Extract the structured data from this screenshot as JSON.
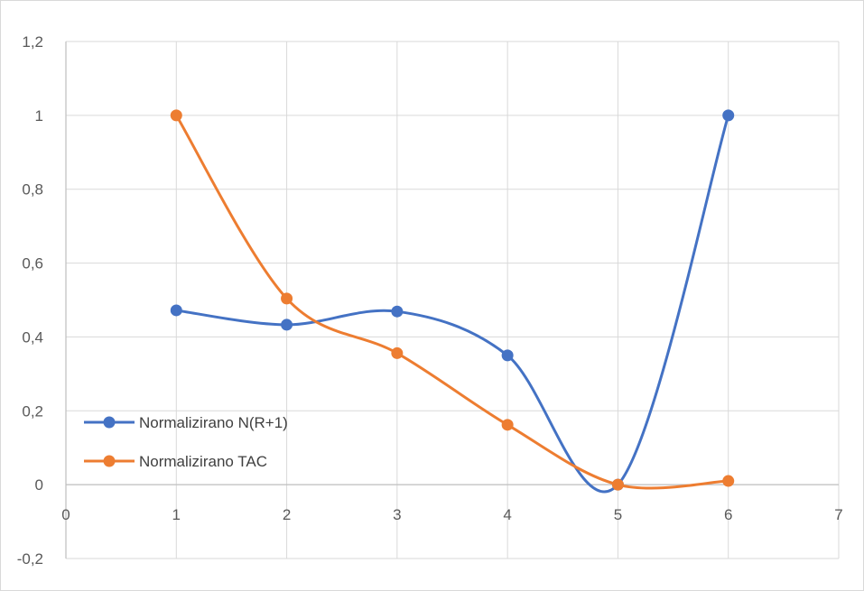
{
  "chart_data": {
    "type": "line",
    "smooth": true,
    "title": "",
    "xlabel": "",
    "ylabel": "",
    "xlim": [
      0,
      7
    ],
    "ylim": [
      -0.2,
      1.2
    ],
    "x_ticks": [
      0,
      1,
      2,
      3,
      4,
      5,
      6,
      7
    ],
    "x_tick_labels": [
      "0",
      "1",
      "2",
      "3",
      "4",
      "5",
      "6",
      "7"
    ],
    "y_ticks": [
      -0.2,
      0,
      0.2,
      0.4,
      0.6,
      0.8,
      1,
      1.2
    ],
    "y_tick_labels": [
      "-0,2",
      "0",
      "0,2",
      "0,4",
      "0,6",
      "0,8",
      "1",
      "1,2"
    ],
    "grid": true,
    "legend_position": "bottom-left",
    "series": [
      {
        "name": "Normalizirano N(R+1)",
        "color": "#4472C4",
        "x": [
          1,
          2,
          3,
          4,
          5,
          6
        ],
        "y": [
          0.472,
          0.433,
          0.469,
          0.35,
          0.0,
          1.0
        ]
      },
      {
        "name": "Normalizirano TAC",
        "color": "#ED7D31",
        "x": [
          1,
          2,
          3,
          4,
          5,
          6
        ],
        "y": [
          1.0,
          0.504,
          0.356,
          0.162,
          0.0,
          0.01
        ]
      }
    ]
  }
}
